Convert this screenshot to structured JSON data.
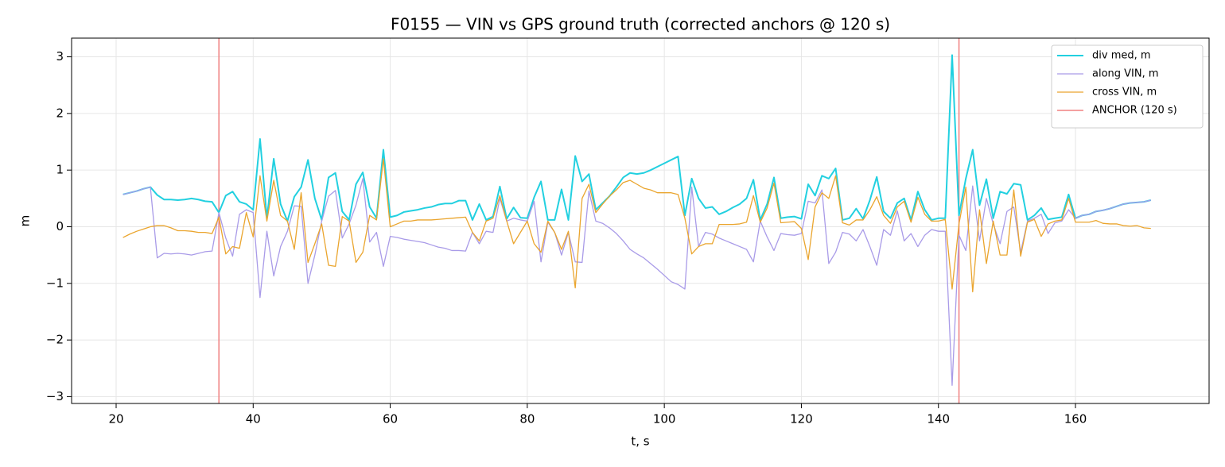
{
  "chart_data": {
    "type": "line",
    "title": "F0155 — VIN vs GPS ground truth (corrected anchors @ 120 s)",
    "xlabel": "t, s",
    "ylabel": "m",
    "x": [
      21,
      22,
      23,
      24,
      25,
      26,
      27,
      28,
      29,
      30,
      31,
      32,
      33,
      34,
      35,
      36,
      37,
      38,
      39,
      40,
      41,
      42,
      43,
      44,
      45,
      46,
      47,
      48,
      49,
      50,
      51,
      52,
      53,
      54,
      55,
      56,
      57,
      58,
      59,
      60,
      61,
      62,
      63,
      64,
      65,
      66,
      67,
      68,
      69,
      70,
      71,
      72,
      73,
      74,
      75,
      76,
      77,
      78,
      79,
      80,
      81,
      82,
      83,
      84,
      85,
      86,
      87,
      88,
      89,
      90,
      91,
      92,
      93,
      94,
      95,
      96,
      97,
      98,
      99,
      100,
      101,
      102,
      103,
      104,
      105,
      106,
      107,
      108,
      109,
      110,
      111,
      112,
      113,
      114,
      115,
      116,
      117,
      118,
      119,
      120,
      121,
      122,
      123,
      124,
      125,
      126,
      127,
      128,
      129,
      130,
      131,
      132,
      133,
      134,
      135,
      136,
      137,
      138,
      139,
      140,
      141,
      142,
      143,
      144,
      145,
      146,
      147,
      148,
      149,
      150,
      151,
      152,
      153,
      154,
      155,
      156,
      157,
      158,
      159,
      160,
      161,
      162,
      163,
      164,
      165,
      166,
      167,
      168,
      169,
      170,
      171
    ],
    "series": [
      {
        "name": "div med, m",
        "color": "#22d0e0",
        "width": 2,
        "values": [
          0.57,
          0.6,
          0.63,
          0.67,
          0.7,
          0.56,
          0.48,
          0.48,
          0.47,
          0.48,
          0.5,
          0.48,
          0.45,
          0.44,
          0.25,
          0.55,
          0.62,
          0.44,
          0.4,
          0.3,
          1.55,
          0.15,
          1.2,
          0.4,
          0.1,
          0.53,
          0.7,
          1.18,
          0.5,
          0.12,
          0.87,
          0.95,
          0.27,
          0.12,
          0.75,
          0.96,
          0.35,
          0.15,
          1.36,
          0.17,
          0.2,
          0.26,
          0.28,
          0.3,
          0.33,
          0.35,
          0.39,
          0.41,
          0.41,
          0.46,
          0.46,
          0.12,
          0.4,
          0.12,
          0.18,
          0.71,
          0.14,
          0.34,
          0.16,
          0.15,
          0.52,
          0.8,
          0.12,
          0.12,
          0.66,
          0.12,
          1.25,
          0.8,
          0.93,
          0.3,
          0.42,
          0.54,
          0.7,
          0.87,
          0.95,
          0.93,
          0.95,
          1.0,
          1.06,
          1.12,
          1.18,
          1.24,
          0.2,
          0.85,
          0.5,
          0.33,
          0.35,
          0.22,
          0.27,
          0.34,
          0.4,
          0.5,
          0.83,
          0.12,
          0.4,
          0.87,
          0.15,
          0.17,
          0.18,
          0.14,
          0.75,
          0.55,
          0.9,
          0.85,
          1.03,
          0.12,
          0.15,
          0.32,
          0.14,
          0.47,
          0.88,
          0.27,
          0.15,
          0.42,
          0.5,
          0.12,
          0.62,
          0.3,
          0.12,
          0.15,
          0.15,
          3.03,
          0.2,
          0.85,
          1.36,
          0.38,
          0.84,
          0.15,
          0.62,
          0.58,
          0.76,
          0.74,
          0.12,
          0.2,
          0.33,
          0.13,
          0.15,
          0.17,
          0.57,
          0.15,
          0.2,
          0.22,
          0.27,
          0.29,
          0.32,
          0.36,
          0.4,
          0.42,
          0.43,
          0.44,
          0.47
        ]
      },
      {
        "name": "along VIN, m",
        "color": "#a99be8",
        "width": 1.3,
        "values": [
          0.57,
          0.6,
          0.63,
          0.67,
          0.7,
          -0.55,
          -0.47,
          -0.48,
          -0.47,
          -0.48,
          -0.5,
          -0.47,
          -0.44,
          -0.43,
          0.25,
          -0.2,
          -0.52,
          0.22,
          0.3,
          0.25,
          -1.25,
          -0.08,
          -0.87,
          -0.35,
          -0.08,
          0.37,
          0.36,
          -1.0,
          -0.5,
          0.1,
          0.54,
          0.64,
          -0.2,
          0.05,
          0.38,
          0.85,
          -0.27,
          -0.1,
          -0.7,
          -0.17,
          -0.19,
          -0.22,
          -0.24,
          -0.26,
          -0.28,
          -0.32,
          -0.36,
          -0.38,
          -0.42,
          -0.42,
          -0.43,
          -0.1,
          -0.3,
          -0.08,
          -0.1,
          0.5,
          0.1,
          0.15,
          0.12,
          0.1,
          0.45,
          -0.62,
          0.08,
          -0.1,
          -0.5,
          -0.1,
          -0.62,
          -0.63,
          0.63,
          0.1,
          0.06,
          -0.02,
          -0.12,
          -0.25,
          -0.4,
          -0.48,
          -0.55,
          -0.65,
          -0.75,
          -0.86,
          -0.97,
          -1.02,
          -1.1,
          0.7,
          -0.35,
          -0.1,
          -0.13,
          -0.2,
          -0.25,
          -0.3,
          -0.35,
          -0.4,
          -0.62,
          0.1,
          -0.18,
          -0.42,
          -0.12,
          -0.14,
          -0.15,
          -0.12,
          0.45,
          0.42,
          0.65,
          -0.65,
          -0.45,
          -0.1,
          -0.13,
          -0.25,
          -0.05,
          -0.35,
          -0.68,
          -0.05,
          -0.15,
          0.28,
          -0.25,
          -0.12,
          -0.35,
          -0.15,
          -0.05,
          -0.08,
          -0.08,
          -2.8,
          -0.15,
          -0.42,
          0.72,
          -0.25,
          0.5,
          0.05,
          -0.3,
          0.27,
          0.35,
          -0.45,
          0.1,
          0.15,
          0.22,
          -0.12,
          0.07,
          0.1,
          0.3,
          0.15,
          0.2,
          0.22,
          0.27,
          0.29,
          0.32,
          0.36,
          0.4,
          0.42,
          0.43,
          0.44,
          0.47
        ]
      },
      {
        "name": "cross VIN, m",
        "color": "#eaa52e",
        "width": 1.3,
        "values": [
          -0.19,
          -0.13,
          -0.08,
          -0.04,
          0,
          0.02,
          0.02,
          -0.02,
          -0.07,
          -0.07,
          -0.08,
          -0.1,
          -0.1,
          -0.12,
          0.17,
          -0.48,
          -0.35,
          -0.38,
          0.25,
          -0.18,
          0.9,
          0.1,
          0.82,
          0.2,
          0.1,
          -0.4,
          0.6,
          -0.63,
          -0.3,
          0.05,
          -0.68,
          -0.7,
          0.18,
          0.1,
          -0.63,
          -0.45,
          0.2,
          0.12,
          1.2,
          0,
          0.05,
          0.1,
          0.1,
          0.12,
          0.12,
          0.12,
          0.13,
          0.14,
          0.15,
          0.16,
          0.17,
          -0.1,
          -0.25,
          0.1,
          0.15,
          0.55,
          0.1,
          -0.3,
          -0.1,
          0.1,
          -0.3,
          -0.45,
          0.1,
          -0.1,
          -0.4,
          -0.08,
          -1.08,
          0.5,
          0.75,
          0.25,
          0.4,
          0.54,
          0.65,
          0.78,
          0.82,
          0.75,
          0.68,
          0.65,
          0.6,
          0.6,
          0.6,
          0.57,
          0.15,
          -0.48,
          -0.35,
          -0.3,
          -0.3,
          0.04,
          0.04,
          0.04,
          0.05,
          0.08,
          0.55,
          0.08,
          0.33,
          0.77,
          0.07,
          0.08,
          0.09,
          -0.03,
          -0.58,
          0.35,
          0.6,
          0.5,
          0.9,
          0.07,
          0.03,
          0.12,
          0.12,
          0.3,
          0.53,
          0.2,
          0.06,
          0.35,
          0.45,
          0.08,
          0.52,
          0.22,
          0.1,
          0.1,
          0.13,
          -1.1,
          0.05,
          0.7,
          -1.15,
          0.3,
          -0.65,
          0.1,
          -0.5,
          -0.5,
          0.65,
          -0.52,
          0.08,
          0.13,
          -0.17,
          0.05,
          0.1,
          0.12,
          0.5,
          0.08,
          0.08,
          0.08,
          0.11,
          0.06,
          0.05,
          0.05,
          0.02,
          0.01,
          0.02,
          -0.02,
          -0.03
        ]
      }
    ],
    "vlines": {
      "name": "ANCHOR (120 s)",
      "color": "#f08080",
      "x": [
        35,
        143
      ]
    },
    "xlim": [
      13.5,
      179.5
    ],
    "ylim": [
      -3.12,
      3.33
    ],
    "xticks": [
      20,
      40,
      60,
      80,
      100,
      120,
      140,
      160
    ],
    "yticks": [
      {
        "value": -3,
        "label": "−3"
      },
      {
        "value": -2,
        "label": "−2"
      },
      {
        "value": -1,
        "label": "−1"
      },
      0,
      1,
      2,
      3
    ],
    "grid": true,
    "legend": "upper right"
  }
}
